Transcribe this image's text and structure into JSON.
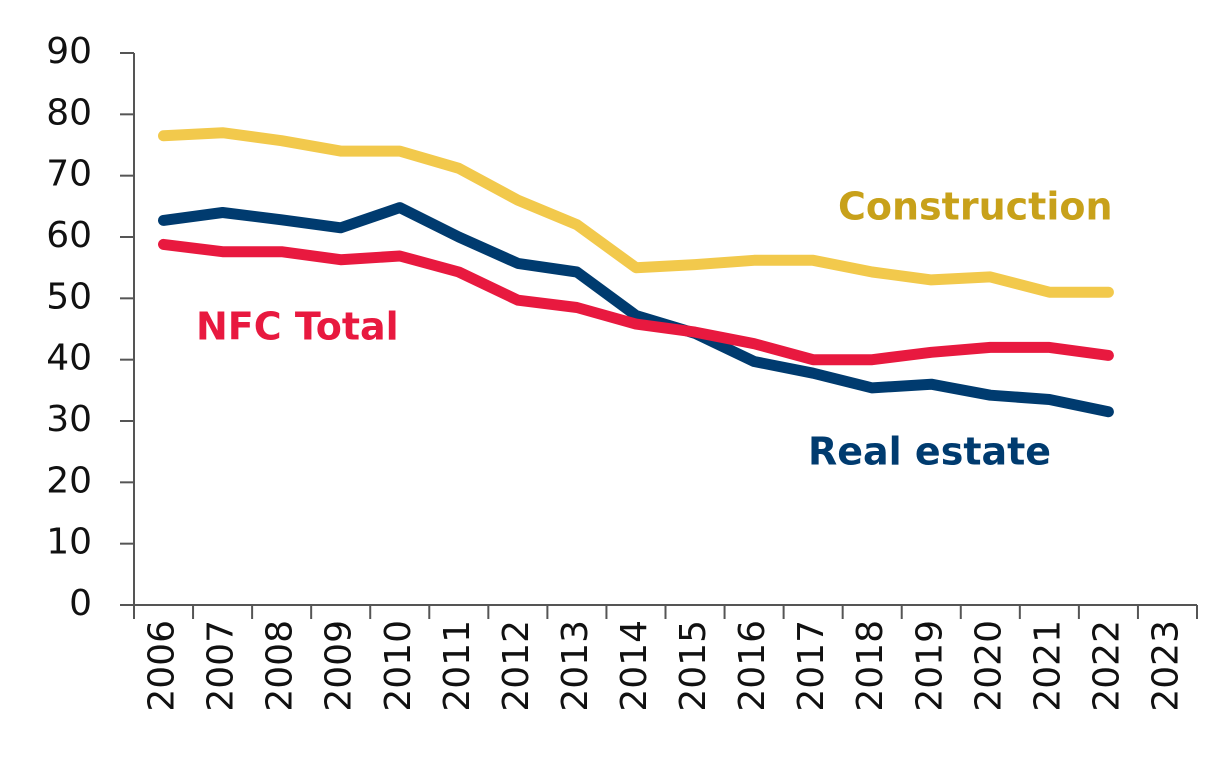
{
  "chart_data": {
    "type": "line",
    "categories": [
      "2006",
      "2007",
      "2008",
      "2009",
      "2010",
      "2011",
      "2012",
      "2013",
      "2014",
      "2015",
      "2016",
      "2017",
      "2018",
      "2019",
      "2020",
      "2021",
      "2022",
      "2023"
    ],
    "ylim": [
      0,
      90
    ],
    "yticks": [
      "0",
      "10",
      "20",
      "30",
      "40",
      "50",
      "60",
      "70",
      "80",
      "90"
    ],
    "grid": false,
    "series": [
      {
        "name": "Construction",
        "color": "#F2C94C",
        "label_color": "#C8A11A",
        "values": [
          76.5,
          77,
          75.7,
          74,
          74,
          71.2,
          66,
          62,
          55,
          55.5,
          56.2,
          56.2,
          54.3,
          53,
          53.5,
          51,
          51,
          null
        ]
      },
      {
        "name": "Real estate",
        "color": "#003B6F",
        "label_color": "#003B6F",
        "values": [
          62.7,
          64,
          62.8,
          61.5,
          64.8,
          60,
          55.7,
          54.3,
          47.2,
          44.3,
          39.7,
          37.8,
          35.4,
          36,
          34.2,
          33.5,
          31.5,
          null
        ]
      },
      {
        "name": "NFC Total",
        "color": "#E8193F",
        "label_color": "#E8193F",
        "values": [
          58.8,
          57.6,
          57.6,
          56.3,
          56.9,
          54.3,
          49.7,
          48.5,
          45.8,
          44.5,
          42.6,
          40,
          40,
          41.2,
          42,
          42,
          40.7,
          null
        ]
      }
    ]
  }
}
